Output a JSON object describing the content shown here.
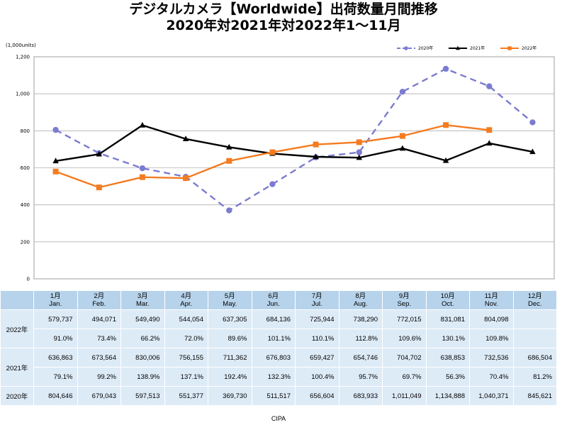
{
  "title_line1": "デジタルカメラ【Worldwide】出荷数量月間推移",
  "title_line2": "2020年対2021年対2022年1～11月",
  "source": "CIPA",
  "chart_data": {
    "type": "line",
    "ylabel": "(1,000units)",
    "ylim": [
      0,
      1200
    ],
    "yticks": [
      0,
      200,
      400,
      600,
      800,
      1000,
      1200
    ],
    "ytick_labels": [
      "0",
      "200",
      "400",
      "600",
      "800",
      "1,000",
      "1,200"
    ],
    "categories": [
      "1月",
      "2月",
      "3月",
      "4月",
      "5月",
      "6月",
      "7月",
      "8月",
      "9月",
      "10月",
      "11月",
      "12月"
    ],
    "series": [
      {
        "name": "2020年",
        "color": "#7b7bd1",
        "style": "dashed",
        "marker": "circle",
        "values": [
          804.646,
          679.043,
          597.513,
          551.377,
          369.73,
          511.517,
          656.604,
          683.933,
          1011.049,
          1134.888,
          1040.371,
          845.621
        ]
      },
      {
        "name": "2021年",
        "color": "#000000",
        "style": "solid",
        "marker": "triangle",
        "values": [
          636.863,
          673.564,
          830.006,
          756.155,
          711.362,
          676.803,
          659.427,
          654.746,
          704.702,
          638.853,
          732.536,
          686.504
        ]
      },
      {
        "name": "2022年",
        "color": "#f47b20",
        "style": "solid",
        "marker": "square",
        "values": [
          579.737,
          494.071,
          549.49,
          544.054,
          637.305,
          684.136,
          725.944,
          738.29,
          772.015,
          831.081,
          804.098,
          null
        ]
      }
    ]
  },
  "table": {
    "months": [
      {
        "jp": "1月",
        "en": "Jan."
      },
      {
        "jp": "2月",
        "en": "Feb."
      },
      {
        "jp": "3月",
        "en": "Mar."
      },
      {
        "jp": "4月",
        "en": "Apr."
      },
      {
        "jp": "5月",
        "en": "May."
      },
      {
        "jp": "6月",
        "en": "Jun."
      },
      {
        "jp": "7月",
        "en": "Jul."
      },
      {
        "jp": "8月",
        "en": "Aug."
      },
      {
        "jp": "9月",
        "en": "Sep."
      },
      {
        "jp": "10月",
        "en": "Oct."
      },
      {
        "jp": "11月",
        "en": "Nov."
      },
      {
        "jp": "12月",
        "en": "Dec."
      }
    ],
    "rows": [
      {
        "label": "2022年",
        "values": [
          "579,737",
          "494,071",
          "549,490",
          "544,054",
          "637,305",
          "684,136",
          "725,944",
          "738,290",
          "772,015",
          "831,081",
          "804,098",
          ""
        ],
        "pct": [
          "91.0%",
          "73.4%",
          "66.2%",
          "72.0%",
          "89.6%",
          "101.1%",
          "110.1%",
          "112.8%",
          "109.6%",
          "130.1%",
          "109.8%",
          ""
        ]
      },
      {
        "label": "2021年",
        "values": [
          "636,863",
          "673,564",
          "830,006",
          "756,155",
          "711,362",
          "676,803",
          "659,427",
          "654,746",
          "704,702",
          "638,853",
          "732,536",
          "686,504"
        ],
        "pct": [
          "79.1%",
          "99.2%",
          "138.9%",
          "137.1%",
          "192.4%",
          "132.3%",
          "100.4%",
          "95.7%",
          "69.7%",
          "56.3%",
          "70.4%",
          "81.2%"
        ]
      },
      {
        "label": "2020年",
        "values": [
          "804,646",
          "679,043",
          "597,513",
          "551,377",
          "369,730",
          "511,517",
          "656,604",
          "683,933",
          "1,011,049",
          "1,134,888",
          "1,040,371",
          "845,621"
        ]
      }
    ]
  }
}
